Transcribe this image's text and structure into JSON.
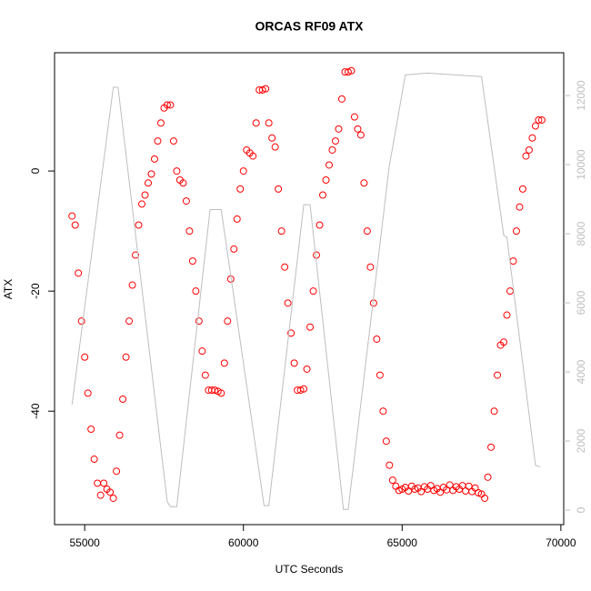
{
  "chart_data": {
    "type": "scatter",
    "title": "ORCAS RF09 ATX",
    "xlabel": "UTC Seconds",
    "ylabel": "ATX",
    "xlim": [
      54050,
      70090
    ],
    "ylim": [
      -58.9,
      19.7
    ],
    "y2lim": [
      -420,
      13240
    ],
    "xticks": [
      55000,
      60000,
      65000,
      70000
    ],
    "yticks": [
      -40,
      -20,
      0
    ],
    "y2ticks": [
      0,
      2000,
      4000,
      6000,
      8000,
      10000,
      12000
    ],
    "series": [
      {
        "color": "#ff0000",
        "x": [
          54600,
          54700,
          54800,
          54900,
          55000,
          55100,
          55200,
          55300,
          55400,
          55500,
          55600,
          55700,
          55800,
          55900,
          56000,
          56100,
          56200,
          56300,
          56400,
          56500,
          56600,
          56700,
          56800,
          56900,
          57000,
          57100,
          57200,
          57300,
          57400,
          57500,
          57600,
          57700,
          57800,
          57900,
          58000,
          58100,
          58200,
          58300,
          58400,
          58500,
          58600,
          58700,
          58800,
          58900,
          59000,
          59100,
          59200,
          59300,
          59400,
          59500,
          59600,
          59700,
          59800,
          59900,
          60000,
          60100,
          60200,
          60300,
          60400,
          60500,
          60600,
          60700,
          60800,
          60900,
          61000,
          61100,
          61200,
          61300,
          61400,
          61500,
          61600,
          61700,
          61800,
          61900,
          62000,
          62100,
          62200,
          62300,
          62400,
          62500,
          62600,
          62700,
          62800,
          62900,
          63000,
          63100,
          63200,
          63300,
          63400,
          63500,
          63600,
          63700,
          63800,
          63900,
          64000,
          64100,
          64200,
          64300,
          64400,
          64500,
          64600,
          64700,
          64800,
          64900,
          65000,
          65100,
          65200,
          65300,
          65400,
          65500,
          65600,
          65700,
          65800,
          65900,
          66000,
          66100,
          66200,
          66300,
          66400,
          66500,
          66600,
          66700,
          66800,
          66900,
          67000,
          67100,
          67200,
          67300,
          67400,
          67500,
          67600,
          67700,
          67800,
          67900,
          68000,
          68100,
          68200,
          68300,
          68400,
          68500,
          68600,
          68700,
          68800,
          68900,
          69000,
          69100,
          69200,
          69300,
          69400
        ],
        "values": [
          -7.5,
          -9,
          -17,
          -25,
          -31,
          -37,
          -43,
          -48,
          -52,
          -54,
          -52,
          -53,
          -53.5,
          -54.5,
          -50,
          -44,
          -38,
          -31,
          -25,
          -19,
          -14,
          -9,
          -5.5,
          -4,
          -2,
          -0.5,
          2,
          5,
          8,
          10.5,
          11,
          11,
          5,
          0,
          -1.5,
          -2,
          -5,
          -10,
          -15,
          -20,
          -25,
          -30,
          -34,
          -36.5,
          -36.5,
          -36.5,
          -36.7,
          -37,
          -32,
          -25,
          -18,
          -13,
          -8,
          -3,
          0,
          3.5,
          3,
          2.5,
          8,
          13.5,
          13.5,
          13.7,
          8,
          5.5,
          4,
          -3,
          -10,
          -16,
          -22,
          -27,
          -32,
          -36.5,
          -36.5,
          -36.3,
          -33,
          -26,
          -20,
          -14,
          -9,
          -4,
          -1.5,
          1,
          3.5,
          5,
          7,
          12,
          16.5,
          16.5,
          16.7,
          9,
          7,
          6,
          -2,
          -10,
          -16,
          -22,
          -28,
          -34,
          -40,
          -45,
          -49,
          -51.5,
          -52.5,
          -53.2,
          -53,
          -52.7,
          -53.3,
          -52.5,
          -53,
          -52.8,
          -53.4,
          -52.6,
          -53,
          -52.4,
          -53.2,
          -52.9,
          -53.5,
          -52.7,
          -53.1,
          -52.3,
          -53.2,
          -52.6,
          -53,
          -52.4,
          -53.3,
          -52.5,
          -53.4,
          -52.8,
          -53.6,
          -53.8,
          -54.5,
          -51,
          -46,
          -40,
          -34,
          -29,
          -28.5,
          -24,
          -20,
          -15,
          -10,
          -6,
          -3,
          2.5,
          3.5,
          5.5,
          7.5,
          8.5,
          8.5
        ]
      },
      {
        "color": "#bebebe",
        "axis": "y2",
        "type": "line",
        "x": [
          54600,
          55900,
          56050,
          57600,
          57700,
          57900,
          58950,
          59300,
          60650,
          60800,
          61900,
          62100,
          63150,
          63300,
          64600,
          64700,
          65100,
          65800,
          67500,
          68200,
          68300,
          69200,
          69350
        ],
        "values": [
          3050,
          12240,
          12240,
          240,
          100,
          100,
          8700,
          8700,
          130,
          130,
          8840,
          8840,
          20,
          20,
          10000,
          10500,
          12600,
          12650,
          12550,
          7950,
          7900,
          1300,
          1250
        ]
      }
    ]
  }
}
